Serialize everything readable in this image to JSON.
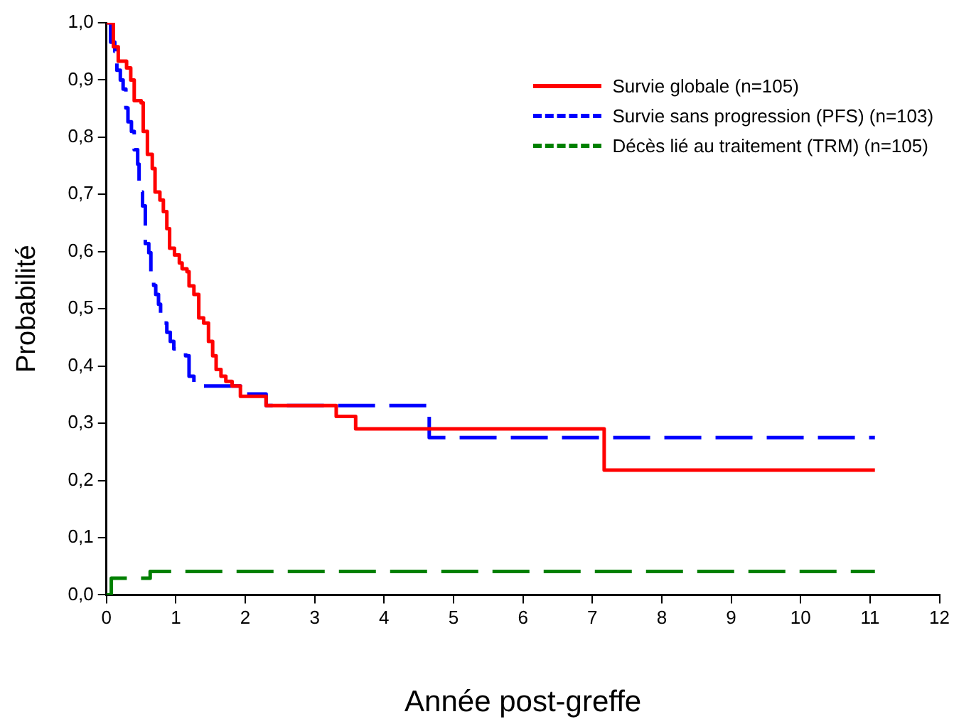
{
  "chart_data": {
    "type": "step",
    "xlabel": "Année post-greffe",
    "ylabel": "Probabilité",
    "xlim": [
      0,
      12
    ],
    "xticks": [
      0,
      1,
      2,
      3,
      4,
      5,
      6,
      7,
      8,
      9,
      10,
      11,
      12
    ],
    "ylim": [
      0,
      1
    ],
    "yticks": [
      {
        "value": 0,
        "label": "0,0"
      },
      {
        "value": 0.1,
        "label": "0,1"
      },
      {
        "value": 0.2,
        "label": "0,2"
      },
      {
        "value": 0.3,
        "label": "0,3"
      },
      {
        "value": 0.4,
        "label": "0,4"
      },
      {
        "value": 0.5,
        "label": "0,5"
      },
      {
        "value": 0.6,
        "label": "0,6"
      },
      {
        "value": 0.7,
        "label": "0,7"
      },
      {
        "value": 0.8,
        "label": "0,8"
      },
      {
        "value": 0.9,
        "label": "0,9"
      },
      {
        "value": 1,
        "label": "1,0"
      }
    ],
    "grid": false,
    "legend": "top right",
    "marker": "none",
    "series": [
      {
        "name": "Survie globale (n=105)",
        "color": "#ff0000",
        "line_style": "solid",
        "x": [
          0,
          0.1,
          0.17,
          0.29,
          0.35,
          0.4,
          0.5,
          0.53,
          0.59,
          0.66,
          0.7,
          0.77,
          0.82,
          0.87,
          0.91,
          0.98,
          1.05,
          1.09,
          1.16,
          1.19,
          1.26,
          1.33,
          1.4,
          1.47,
          1.53,
          1.58,
          1.65,
          1.72,
          1.81,
          1.93,
          2.3,
          3.31,
          3.59,
          7.17,
          11.07
        ],
        "values": [
          1,
          0.958,
          0.933,
          0.921,
          0.9,
          0.864,
          0.86,
          0.81,
          0.77,
          0.745,
          0.704,
          0.69,
          0.67,
          0.64,
          0.606,
          0.594,
          0.58,
          0.57,
          0.565,
          0.54,
          0.525,
          0.484,
          0.475,
          0.443,
          0.418,
          0.394,
          0.382,
          0.373,
          0.365,
          0.347,
          0.331,
          0.312,
          0.29,
          0.218,
          0.218
        ]
      },
      {
        "name": "Survie sans progression (PFS) (n=103)",
        "color": "#0000ff",
        "line_style": "dashed",
        "x": [
          0,
          0.06,
          0.12,
          0.15,
          0.2,
          0.24,
          0.28,
          0.31,
          0.36,
          0.4,
          0.45,
          0.47,
          0.52,
          0.56,
          0.61,
          0.64,
          0.68,
          0.71,
          0.75,
          0.78,
          0.83,
          0.87,
          0.92,
          0.97,
          1.14,
          1.19,
          1.26,
          1.93,
          2.3,
          4.65,
          11.07
        ],
        "values": [
          1,
          0.966,
          0.95,
          0.917,
          0.9,
          0.884,
          0.851,
          0.827,
          0.81,
          0.778,
          0.753,
          0.704,
          0.68,
          0.614,
          0.598,
          0.565,
          0.541,
          0.525,
          0.508,
          0.492,
          0.475,
          0.459,
          0.443,
          0.43,
          0.418,
          0.382,
          0.365,
          0.351,
          0.331,
          0.275,
          0.275
        ]
      },
      {
        "name": "Décès lié au traitement (TRM) (n=105)",
        "color": "#008000",
        "line_style": "dashed",
        "x": [
          0,
          0.07,
          0.63,
          11.07
        ],
        "values": [
          0,
          0.029,
          0.041,
          0.041
        ]
      }
    ]
  }
}
